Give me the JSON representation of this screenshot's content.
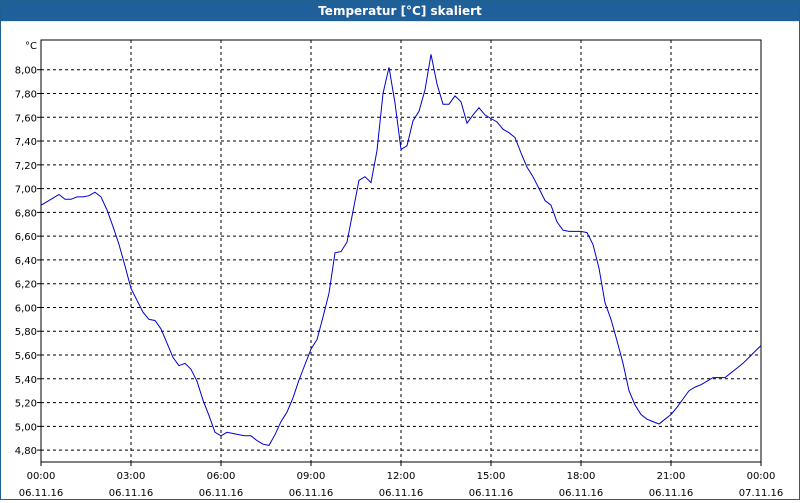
{
  "window": {
    "title": "Temperatur [°C] skaliert"
  },
  "chart_data": {
    "type": "line",
    "title": "Temperatur [°C] skaliert",
    "ylabel": "°C",
    "xlabel": "",
    "ylim": [
      4.7,
      8.25
    ],
    "xlim": [
      0,
      24
    ],
    "grid": true,
    "line_color": "#0000cc",
    "y_ticks": [
      "4,80",
      "5,00",
      "5,20",
      "5,40",
      "5,60",
      "5,80",
      "6,00",
      "6,20",
      "6,40",
      "6,60",
      "6,80",
      "7,00",
      "7,20",
      "7,40",
      "7,60",
      "7,80",
      "8,00"
    ],
    "y_tick_values": [
      4.8,
      5.0,
      5.2,
      5.4,
      5.6,
      5.8,
      6.0,
      6.2,
      6.4,
      6.6,
      6.8,
      7.0,
      7.2,
      7.4,
      7.6,
      7.8,
      8.0
    ],
    "x_ticks": [
      {
        "time": "00:00",
        "date": "06.11.16"
      },
      {
        "time": "03:00",
        "date": "06.11.16"
      },
      {
        "time": "06:00",
        "date": "06.11.16"
      },
      {
        "time": "09:00",
        "date": "06.11.16"
      },
      {
        "time": "12:00",
        "date": "06.11.16"
      },
      {
        "time": "15:00",
        "date": "06.11.16"
      },
      {
        "time": "18:00",
        "date": "06.11.16"
      },
      {
        "time": "21:00",
        "date": "06.11.16"
      },
      {
        "time": "00:00",
        "date": "07.11.16"
      }
    ],
    "x_tick_hours": [
      0,
      3,
      6,
      9,
      12,
      15,
      18,
      21,
      24
    ],
    "series": [
      {
        "x": [
          0,
          0.2,
          0.4,
          0.6,
          0.8,
          1.0,
          1.2,
          1.4,
          1.6,
          1.8,
          2.0,
          2.2,
          2.4,
          2.6,
          2.8,
          3.0,
          3.2,
          3.4,
          3.6,
          3.8,
          4.0,
          4.2,
          4.4,
          4.6,
          4.8,
          5.0,
          5.2,
          5.4,
          5.6,
          5.8,
          6.0,
          6.2,
          6.4,
          6.6,
          6.8,
          7.0,
          7.2,
          7.4,
          7.6,
          7.8,
          8.0,
          8.2,
          8.4,
          8.6,
          8.8,
          9.0,
          9.2,
          9.4,
          9.6,
          9.8,
          10.0,
          10.2,
          10.4,
          10.6,
          10.8,
          11.0,
          11.2,
          11.4,
          11.6,
          11.8,
          12.0,
          12.2,
          12.4,
          12.6,
          12.8,
          13.0,
          13.2,
          13.4,
          13.6,
          13.8,
          14.0,
          14.2,
          14.4,
          14.6,
          14.8,
          15.0,
          15.2,
          15.4,
          15.6,
          15.8,
          16.0,
          16.2,
          16.4,
          16.6,
          16.8,
          17.0,
          17.2,
          17.4,
          17.6,
          17.8,
          18.0,
          18.2,
          18.4,
          18.6,
          18.8,
          19.0,
          19.2,
          19.4,
          19.6,
          19.8,
          20.0,
          20.2,
          20.4,
          20.6,
          20.8,
          21.0,
          21.2,
          21.4,
          21.6,
          21.8,
          22.0,
          22.2,
          22.4,
          22.6,
          22.8,
          23.0,
          23.2,
          23.4,
          23.6,
          23.8,
          24.0
        ],
        "y": [
          6.86,
          6.89,
          6.92,
          6.95,
          6.91,
          6.91,
          6.93,
          6.93,
          6.94,
          6.97,
          6.93,
          6.82,
          6.68,
          6.53,
          6.35,
          6.16,
          6.06,
          5.96,
          5.9,
          5.89,
          5.82,
          5.7,
          5.58,
          5.51,
          5.53,
          5.48,
          5.38,
          5.22,
          5.09,
          4.95,
          4.92,
          4.95,
          4.94,
          4.93,
          4.92,
          4.92,
          4.88,
          4.85,
          4.84,
          4.93,
          5.04,
          5.12,
          5.24,
          5.39,
          5.52,
          5.65,
          5.73,
          5.92,
          6.12,
          6.46,
          6.47,
          6.55,
          6.81,
          7.07,
          7.1,
          7.05,
          7.32,
          7.8,
          8.02,
          7.72,
          7.33,
          7.36,
          7.57,
          7.65,
          7.83,
          8.13,
          7.88,
          7.71,
          7.71,
          7.78,
          7.73,
          7.55,
          7.62,
          7.68,
          7.62,
          7.59,
          7.56,
          7.5,
          7.47,
          7.43,
          7.3,
          7.18,
          7.1,
          7.0,
          6.9,
          6.86,
          6.72,
          6.65,
          6.64,
          6.64,
          6.64,
          6.63,
          6.53,
          6.33,
          6.04,
          5.9,
          5.72,
          5.53,
          5.3,
          5.18,
          5.1,
          5.06,
          5.04,
          5.02,
          5.06,
          5.1,
          5.16,
          5.23,
          5.3,
          5.33,
          5.35,
          5.38,
          5.41,
          5.41,
          5.41,
          5.45,
          5.49,
          5.53,
          5.58,
          5.63,
          5.68
        ]
      }
    ]
  }
}
